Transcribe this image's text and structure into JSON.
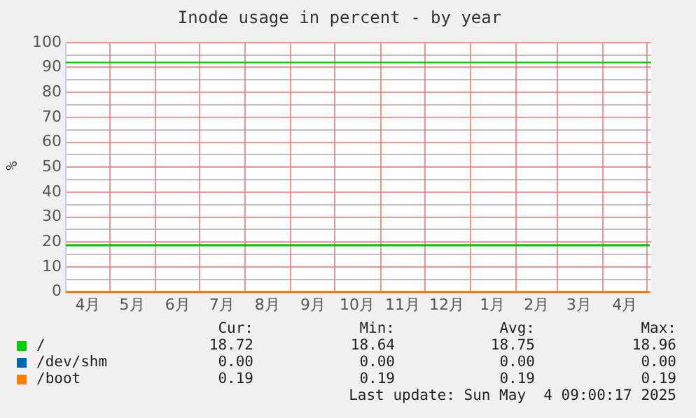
{
  "chart_data": {
    "type": "line",
    "title": "Inode usage in percent - by year",
    "ylabel": "%",
    "x": [
      "2024-04-01",
      "2024-08-01",
      "2024-12-01",
      "2025-05-03"
    ],
    "xlim": [
      "2024-04-01",
      "2025-05-04"
    ],
    "xticks": [
      {
        "value": "2024-04-16",
        "label": "4月"
      },
      {
        "value": "2024-05-01",
        "label": null
      },
      {
        "value": "2024-05-16",
        "label": "5月"
      },
      {
        "value": "2024-06-01",
        "label": null
      },
      {
        "value": "2024-06-16",
        "label": "6月"
      },
      {
        "value": "2024-07-01",
        "label": null
      },
      {
        "value": "2024-07-16",
        "label": "7月"
      },
      {
        "value": "2024-08-01",
        "label": null
      },
      {
        "value": "2024-08-16",
        "label": "8月"
      },
      {
        "value": "2024-09-01",
        "label": null
      },
      {
        "value": "2024-09-16",
        "label": "9月"
      },
      {
        "value": "2024-10-01",
        "label": null
      },
      {
        "value": "2024-10-16",
        "label": "10月"
      },
      {
        "value": "2024-11-01",
        "label": null
      },
      {
        "value": "2024-11-16",
        "label": "11月"
      },
      {
        "value": "2024-12-01",
        "label": null
      },
      {
        "value": "2024-12-16",
        "label": "12月"
      },
      {
        "value": "2025-01-01",
        "label": null
      },
      {
        "value": "2025-01-16",
        "label": "1月"
      },
      {
        "value": "2025-02-01",
        "label": null
      },
      {
        "value": "2025-02-15",
        "label": "2月"
      },
      {
        "value": "2025-03-01",
        "label": null
      },
      {
        "value": "2025-03-16",
        "label": "3月"
      },
      {
        "value": "2025-04-01",
        "label": null
      },
      {
        "value": "2025-04-16",
        "label": "4月"
      },
      {
        "value": "2025-05-01",
        "label": null
      }
    ],
    "ylim": [
      0,
      100
    ],
    "yticks": [
      0,
      {
        "value": 5,
        "label": null
      },
      10,
      {
        "value": 15,
        "label": null
      },
      20,
      {
        "value": 25,
        "label": null
      },
      30,
      {
        "value": 35,
        "label": null
      },
      40,
      {
        "value": 45,
        "label": null
      },
      50,
      {
        "value": 55,
        "label": null
      },
      60,
      {
        "value": 65,
        "label": null
      },
      70,
      {
        "value": 75,
        "label": null
      },
      80,
      {
        "value": 85,
        "label": null
      },
      90,
      {
        "value": 95,
        "label": null
      },
      100
    ],
    "grid": true,
    "legend": "bottom left",
    "marker": "none",
    "line_style": "solid",
    "series": [
      {
        "name": "/",
        "color": "#00cc00",
        "values": [
          18.7,
          18.7,
          18.7,
          18.7
        ]
      },
      {
        "name": "/dev/shm",
        "color": "#0066b3",
        "values": [
          null,
          null,
          null,
          null
        ]
      },
      {
        "name": "/boot",
        "color": "#ff8000",
        "values": [
          0,
          0,
          0,
          0
        ]
      }
    ],
    "ref_lines": [
      {
        "axis": "y",
        "value": 92,
        "color": "#00cc00"
      }
    ],
    "annotations": [
      "Cur:",
      "Min:",
      "Avg:",
      "Max:",
      "18.72",
      "18.64",
      "18.75",
      "18.96",
      "0.00",
      "0.00",
      "0.00",
      "0.00",
      "0.19",
      "0.19",
      "0.19",
      "0.19",
      "Last update: Sun May  4 09:00:17 2025"
    ]
  }
}
